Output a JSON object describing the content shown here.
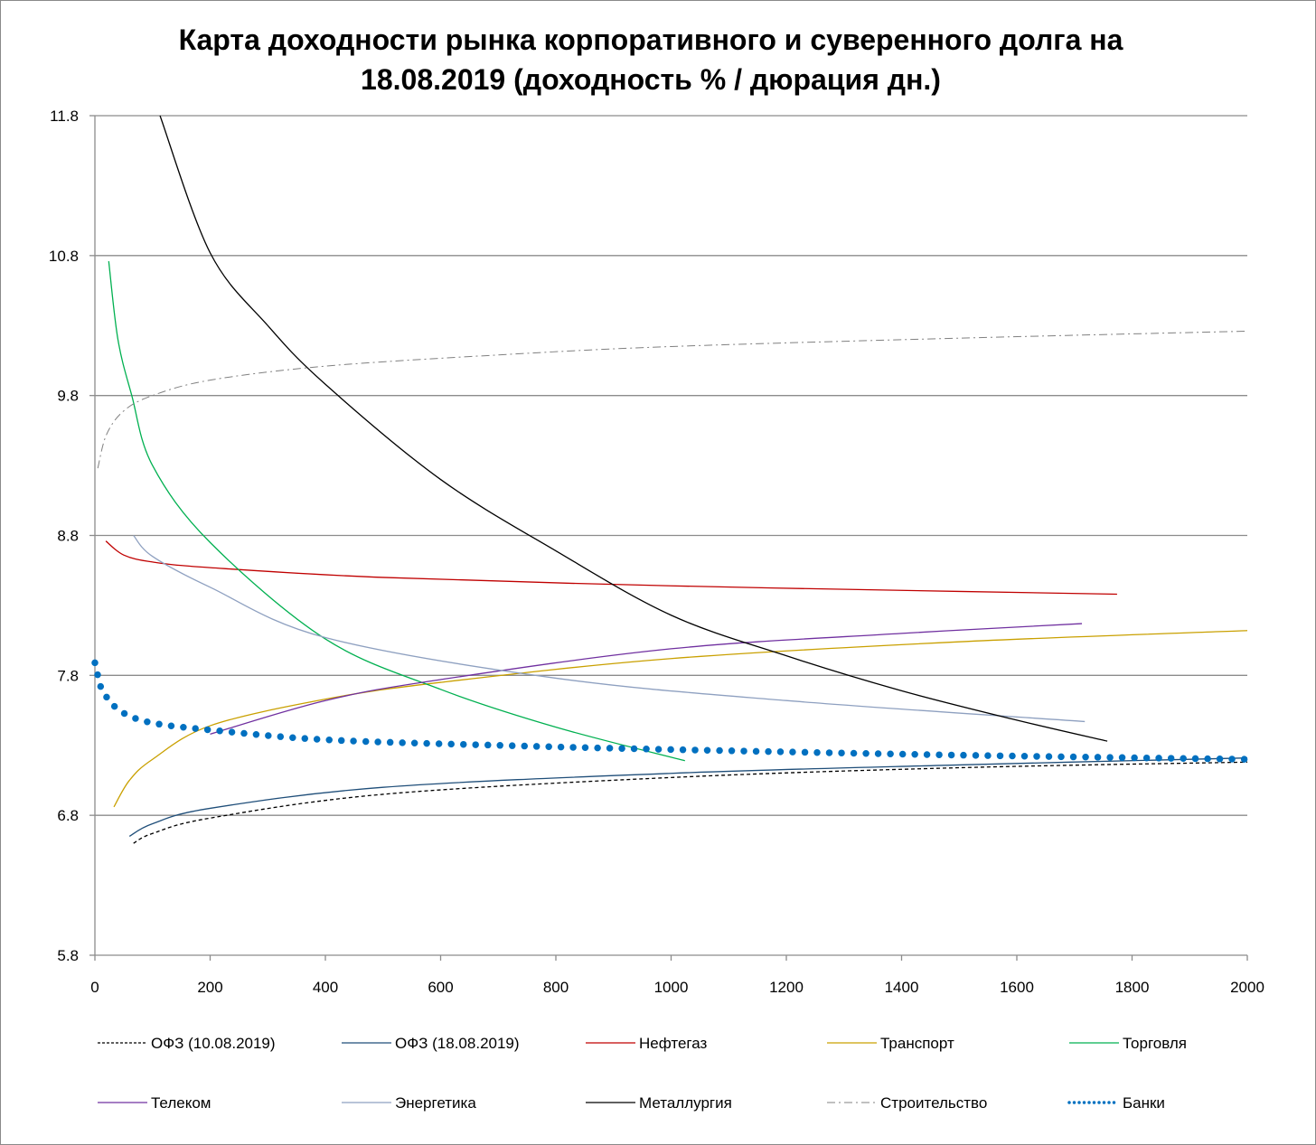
{
  "chart_data": {
    "type": "line",
    "title_line1": "Карта доходности рынка корпоративного и суверенного долга на",
    "title_line2": "18.08.2019 (доходность % / дюрация дн.)",
    "xlabel": "",
    "ylabel": "",
    "xlim": [
      0,
      2000
    ],
    "ylim": [
      5.8,
      11.8
    ],
    "x_ticks": [
      "0",
      "200",
      "400",
      "600",
      "800",
      "1000",
      "1200",
      "1400",
      "1600",
      "1800",
      "2000"
    ],
    "y_ticks": [
      "5.8",
      "6.8",
      "7.8",
      "8.8",
      "9.8",
      "10.8",
      "11.8"
    ],
    "grid": "horizontal",
    "legend_position": "bottom",
    "series": [
      {
        "name": "ОФЗ (10.08.2019)",
        "color": "#000000",
        "style": "dashed",
        "points": [
          [
            67,
            6.6
          ],
          [
            100,
            6.67
          ],
          [
            200,
            6.78
          ],
          [
            500,
            6.95
          ],
          [
            1000,
            7.07
          ],
          [
            1500,
            7.14
          ],
          [
            2000,
            7.18
          ]
        ]
      },
      {
        "name": "ОФЗ (18.08.2019)",
        "color": "#1f4e79",
        "style": "solid",
        "points": [
          [
            60,
            6.65
          ],
          [
            100,
            6.74
          ],
          [
            200,
            6.85
          ],
          [
            500,
            7.0
          ],
          [
            1000,
            7.1
          ],
          [
            1500,
            7.16
          ],
          [
            2000,
            7.21
          ]
        ]
      },
      {
        "name": "Нефтегаз",
        "color": "#c00000",
        "style": "solid",
        "points": [
          [
            19,
            8.76
          ],
          [
            50,
            8.66
          ],
          [
            100,
            8.61
          ],
          [
            200,
            8.57
          ],
          [
            500,
            8.5
          ],
          [
            1000,
            8.44
          ],
          [
            1500,
            8.4
          ],
          [
            1774,
            8.38
          ]
        ]
      },
      {
        "name": "Транспорт",
        "color": "#c9a000",
        "style": "solid",
        "points": [
          [
            33,
            6.86
          ],
          [
            60,
            7.05
          ],
          [
            100,
            7.2
          ],
          [
            200,
            7.44
          ],
          [
            400,
            7.63
          ],
          [
            600,
            7.75
          ],
          [
            1000,
            7.92
          ],
          [
            1500,
            8.04
          ],
          [
            2000,
            8.12
          ]
        ]
      },
      {
        "name": "Торговля",
        "color": "#00b050",
        "style": "solid",
        "points": [
          [
            24,
            10.76
          ],
          [
            40,
            10.2
          ],
          [
            64,
            9.8
          ],
          [
            100,
            9.3
          ],
          [
            200,
            8.75
          ],
          [
            400,
            8.06
          ],
          [
            600,
            7.7
          ],
          [
            800,
            7.43
          ],
          [
            1024,
            7.19
          ]
        ]
      },
      {
        "name": "Телеком",
        "color": "#7030a0",
        "style": "solid",
        "points": [
          [
            200,
            7.38
          ],
          [
            400,
            7.62
          ],
          [
            600,
            7.77
          ],
          [
            1000,
            7.99
          ],
          [
            1400,
            8.1
          ],
          [
            1713,
            8.17
          ]
        ]
      },
      {
        "name": "Энергетика",
        "color": "#8ea0c0",
        "style": "solid",
        "points": [
          [
            67,
            8.8
          ],
          [
            100,
            8.65
          ],
          [
            200,
            8.43
          ],
          [
            400,
            8.07
          ],
          [
            800,
            7.78
          ],
          [
            1200,
            7.62
          ],
          [
            1718,
            7.47
          ]
        ]
      },
      {
        "name": "Металлургия",
        "color": "#000000",
        "style": "solid",
        "points": [
          [
            113,
            11.8
          ],
          [
            200,
            10.82
          ],
          [
            300,
            10.3
          ],
          [
            400,
            9.88
          ],
          [
            600,
            9.2
          ],
          [
            800,
            8.69
          ],
          [
            1000,
            8.23
          ],
          [
            1200,
            7.94
          ],
          [
            1400,
            7.69
          ],
          [
            1600,
            7.48
          ],
          [
            1757,
            7.33
          ]
        ]
      },
      {
        "name": "Строительство",
        "color": "#808080",
        "style": "dashdot",
        "points": [
          [
            5,
            9.28
          ],
          [
            20,
            9.52
          ],
          [
            50,
            9.69
          ],
          [
            100,
            9.8
          ],
          [
            200,
            9.91
          ],
          [
            400,
            10.01
          ],
          [
            700,
            10.09
          ],
          [
            1000,
            10.15
          ],
          [
            1500,
            10.21
          ],
          [
            2000,
            10.26
          ]
        ]
      },
      {
        "name": "Банки",
        "color": "#0070c0",
        "style": "dots",
        "points": [
          [
            0,
            7.89
          ],
          [
            5,
            7.8
          ],
          [
            10,
            7.72
          ],
          [
            25,
            7.62
          ],
          [
            50,
            7.53
          ],
          [
            100,
            7.46
          ],
          [
            200,
            7.41
          ],
          [
            400,
            7.34
          ],
          [
            700,
            7.3
          ],
          [
            1000,
            7.27
          ],
          [
            1500,
            7.23
          ],
          [
            2000,
            7.2
          ]
        ]
      }
    ]
  }
}
